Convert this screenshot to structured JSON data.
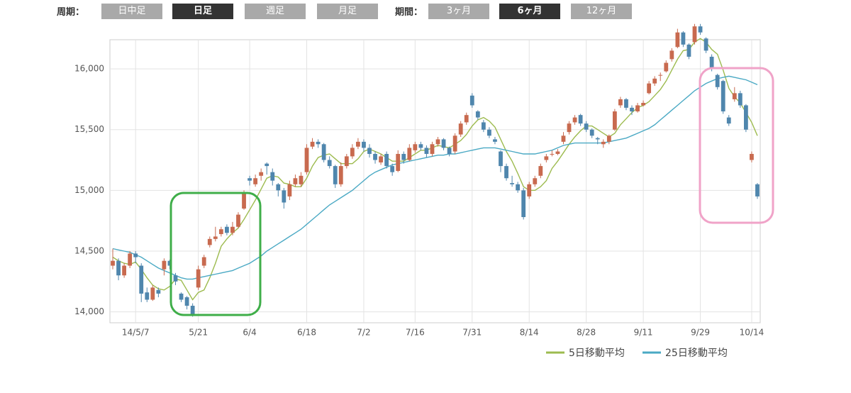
{
  "controls": {
    "period_label": "周期：",
    "period_buttons": [
      "日中足",
      "日足",
      "週足",
      "月足"
    ],
    "range_label": "期間：",
    "range_buttons": [
      "3ヶ月",
      "6ヶ月",
      "12ヶ月"
    ]
  },
  "chart_data": {
    "type": "candlestick",
    "categories": [
      null,
      null,
      null,
      null,
      "14/5/7",
      null,
      null,
      null,
      null,
      null,
      null,
      null,
      null,
      null,
      null,
      "5/21",
      null,
      null,
      null,
      null,
      null,
      null,
      null,
      null,
      "6/4",
      null,
      null,
      null,
      null,
      null,
      null,
      null,
      null,
      null,
      "6/18",
      null,
      null,
      null,
      null,
      null,
      null,
      null,
      null,
      null,
      "7/2",
      null,
      null,
      null,
      null,
      null,
      null,
      null,
      null,
      "7/16",
      null,
      null,
      null,
      null,
      null,
      null,
      null,
      null,
      null,
      "7/31",
      null,
      null,
      null,
      null,
      null,
      null,
      null,
      null,
      null,
      "8/14",
      null,
      null,
      null,
      null,
      null,
      null,
      null,
      null,
      null,
      "8/28",
      null,
      null,
      null,
      null,
      null,
      null,
      null,
      null,
      null,
      "9/11",
      null,
      null,
      null,
      null,
      null,
      null,
      null,
      null,
      null,
      "9/29",
      null,
      null,
      null,
      null,
      null,
      null,
      null,
      null,
      "10/14",
      null
    ],
    "ohlc": [
      [
        14380,
        14520,
        14350,
        14420
      ],
      [
        14420,
        14440,
        14260,
        14300
      ],
      [
        14300,
        14400,
        14280,
        14380
      ],
      [
        14380,
        14500,
        14360,
        14480
      ],
      [
        14480,
        14500,
        14400,
        14450
      ],
      [
        14380,
        14400,
        14080,
        14150
      ],
      [
        14160,
        14200,
        14080,
        14100
      ],
      [
        14100,
        14220,
        14090,
        14200
      ],
      [
        14180,
        14200,
        14120,
        14150
      ],
      [
        14350,
        14440,
        14300,
        14420
      ],
      [
        14420,
        14430,
        14350,
        14380
      ],
      [
        14300,
        14320,
        14220,
        14250
      ],
      [
        14150,
        14160,
        14080,
        14100
      ],
      [
        14120,
        14130,
        14020,
        14050
      ],
      [
        14050,
        14070,
        13960,
        13980
      ],
      [
        14200,
        14380,
        14180,
        14350
      ],
      [
        14380,
        14470,
        14360,
        14450
      ],
      [
        14550,
        14620,
        14530,
        14600
      ],
      [
        14600,
        14700,
        14580,
        14620
      ],
      [
        14640,
        14700,
        14620,
        14680
      ],
      [
        14700,
        14720,
        14630,
        14650
      ],
      [
        14650,
        14740,
        14630,
        14700
      ],
      [
        14700,
        14820,
        14690,
        14800
      ],
      [
        14850,
        15000,
        14840,
        14970
      ],
      [
        15100,
        15120,
        15040,
        15080
      ],
      [
        15050,
        15130,
        15030,
        15100
      ],
      [
        15120,
        15180,
        15080,
        15150
      ],
      [
        15220,
        15230,
        15130,
        15200
      ],
      [
        15150,
        15180,
        15040,
        15080
      ],
      [
        15050,
        15060,
        14950,
        15000
      ],
      [
        15000,
        15020,
        14850,
        14900
      ],
      [
        14950,
        15080,
        14920,
        15050
      ],
      [
        15050,
        15130,
        15030,
        15100
      ],
      [
        15050,
        15150,
        15030,
        15120
      ],
      [
        15150,
        15380,
        15130,
        15350
      ],
      [
        15360,
        15430,
        15340,
        15400
      ],
      [
        15400,
        15420,
        15350,
        15380
      ],
      [
        15380,
        15390,
        15230,
        15250
      ],
      [
        15250,
        15280,
        15180,
        15200
      ],
      [
        15200,
        15210,
        15020,
        15050
      ],
      [
        15050,
        15230,
        15030,
        15200
      ],
      [
        15200,
        15300,
        15180,
        15280
      ],
      [
        15280,
        15380,
        15260,
        15350
      ],
      [
        15360,
        15430,
        15340,
        15400
      ],
      [
        15400,
        15420,
        15320,
        15350
      ],
      [
        15350,
        15380,
        15270,
        15300
      ],
      [
        15300,
        15320,
        15220,
        15250
      ],
      [
        15230,
        15300,
        15210,
        15280
      ],
      [
        15300,
        15320,
        15180,
        15200
      ],
      [
        15200,
        15220,
        15120,
        15150
      ],
      [
        15160,
        15330,
        15150,
        15300
      ],
      [
        15300,
        15320,
        15220,
        15250
      ],
      [
        15250,
        15380,
        15240,
        15350
      ],
      [
        15330,
        15400,
        15310,
        15380
      ],
      [
        15380,
        15400,
        15330,
        15350
      ],
      [
        15350,
        15370,
        15270,
        15300
      ],
      [
        15300,
        15400,
        15280,
        15380
      ],
      [
        15380,
        15440,
        15360,
        15420
      ],
      [
        15420,
        15430,
        15330,
        15350
      ],
      [
        15350,
        15360,
        15280,
        15300
      ],
      [
        15320,
        15470,
        15300,
        15450
      ],
      [
        15460,
        15570,
        15440,
        15550
      ],
      [
        15560,
        15640,
        15540,
        15620
      ],
      [
        15780,
        15800,
        15680,
        15700
      ],
      [
        15650,
        15660,
        15580,
        15600
      ],
      [
        15560,
        15580,
        15480,
        15500
      ],
      [
        15500,
        15520,
        15430,
        15450
      ],
      [
        15420,
        15440,
        15380,
        15400
      ],
      [
        15320,
        15330,
        15150,
        15200
      ],
      [
        15200,
        15220,
        15080,
        15100
      ],
      [
        15060,
        15120,
        15030,
        15050
      ],
      [
        15050,
        15070,
        14980,
        15000
      ],
      [
        15000,
        15020,
        14760,
        14780
      ],
      [
        14950,
        15070,
        14930,
        15050
      ],
      [
        15050,
        15120,
        15030,
        15100
      ],
      [
        15120,
        15220,
        15100,
        15200
      ],
      [
        15250,
        15300,
        15230,
        15280
      ],
      [
        15300,
        15330,
        15280,
        15300
      ],
      [
        15300,
        15340,
        15290,
        15320
      ],
      [
        15400,
        15480,
        15380,
        15450
      ],
      [
        15480,
        15570,
        15460,
        15550
      ],
      [
        15560,
        15620,
        15540,
        15600
      ],
      [
        15620,
        15630,
        15530,
        15550
      ],
      [
        15550,
        15570,
        15480,
        15500
      ],
      [
        15500,
        15510,
        15430,
        15450
      ],
      [
        15430,
        15440,
        15380,
        15420
      ],
      [
        15380,
        15420,
        15350,
        15400
      ],
      [
        15400,
        15460,
        15380,
        15450
      ],
      [
        15500,
        15670,
        15490,
        15650
      ],
      [
        15700,
        15770,
        15680,
        15750
      ],
      [
        15750,
        15760,
        15660,
        15680
      ],
      [
        15680,
        15700,
        15620,
        15650
      ],
      [
        15650,
        15720,
        15640,
        15700
      ],
      [
        15700,
        15740,
        15690,
        15720
      ],
      [
        15800,
        15900,
        15790,
        15880
      ],
      [
        15880,
        15940,
        15860,
        15920
      ],
      [
        15950,
        15970,
        15900,
        15950
      ],
      [
        15980,
        16070,
        15970,
        16050
      ],
      [
        16080,
        16170,
        16060,
        16150
      ],
      [
        16180,
        16330,
        16170,
        16300
      ],
      [
        16300,
        16310,
        16180,
        16200
      ],
      [
        16200,
        16210,
        16080,
        16100
      ],
      [
        16220,
        16370,
        16200,
        16350
      ],
      [
        16350,
        16370,
        16280,
        16300
      ],
      [
        16250,
        16260,
        16130,
        16150
      ],
      [
        16100,
        16120,
        15980,
        16000
      ],
      [
        15950,
        15960,
        15830,
        15850
      ],
      [
        15900,
        15910,
        15630,
        15650
      ],
      [
        15600,
        15620,
        15530,
        15550
      ],
      [
        15750,
        15850,
        15730,
        15800
      ],
      [
        15800,
        15820,
        15680,
        15700
      ],
      [
        15700,
        15710,
        15480,
        15500
      ],
      [
        15250,
        15320,
        15230,
        15300
      ],
      [
        15050,
        15060,
        14930,
        14950
      ]
    ],
    "up_color": "#c86a4f",
    "down_color": "#4f86ad",
    "series": [
      {
        "name": "5日移動平均",
        "color": "#9dbb4f",
        "values": [
          14450,
          14420,
          14400,
          14390,
          14410,
          14350,
          14280,
          14220,
          14190,
          14180,
          14210,
          14270,
          14260,
          14180,
          14100,
          14160,
          14180,
          14280,
          14400,
          14540,
          14600,
          14650,
          14690,
          14760,
          14840,
          14920,
          15010,
          15100,
          15120,
          15110,
          15060,
          15050,
          15030,
          15030,
          15100,
          15200,
          15270,
          15290,
          15300,
          15260,
          15220,
          15220,
          15220,
          15260,
          15320,
          15340,
          15320,
          15300,
          15270,
          15240,
          15240,
          15240,
          15270,
          15300,
          15330,
          15330,
          15350,
          15370,
          15360,
          15350,
          15380,
          15410,
          15460,
          15530,
          15580,
          15600,
          15570,
          15520,
          15420,
          15320,
          15240,
          15140,
          15030,
          15000,
          15000,
          15030,
          15080,
          15180,
          15240,
          15310,
          15380,
          15440,
          15490,
          15530,
          15530,
          15500,
          15470,
          15440,
          15470,
          15540,
          15590,
          15640,
          15680,
          15700,
          15730,
          15780,
          15830,
          15900,
          15990,
          16080,
          16150,
          16160,
          16220,
          16250,
          16220,
          16160,
          16120,
          15990,
          15840,
          15770,
          15720,
          15640,
          15560,
          15450
        ]
      },
      {
        "name": "25日移動平均",
        "color": "#4aa9c4",
        "values": [
          14520,
          14510,
          14500,
          14490,
          14470,
          14450,
          14420,
          14390,
          14360,
          14340,
          14320,
          14300,
          14280,
          14270,
          14270,
          14280,
          14290,
          14300,
          14310,
          14320,
          14330,
          14340,
          14360,
          14380,
          14400,
          14430,
          14460,
          14500,
          14530,
          14560,
          14590,
          14620,
          14650,
          14680,
          14720,
          14760,
          14800,
          14840,
          14880,
          14910,
          14940,
          14970,
          15000,
          15040,
          15080,
          15120,
          15150,
          15170,
          15190,
          15210,
          15220,
          15230,
          15240,
          15250,
          15260,
          15270,
          15280,
          15290,
          15290,
          15300,
          15300,
          15310,
          15320,
          15330,
          15340,
          15350,
          15350,
          15350,
          15340,
          15330,
          15320,
          15310,
          15300,
          15300,
          15300,
          15310,
          15320,
          15330,
          15350,
          15370,
          15380,
          15390,
          15390,
          15390,
          15390,
          15390,
          15390,
          15400,
          15410,
          15420,
          15430,
          15450,
          15470,
          15490,
          15510,
          15540,
          15580,
          15620,
          15660,
          15700,
          15740,
          15780,
          15820,
          15850,
          15880,
          15900,
          15920,
          15930,
          15940,
          15930,
          15920,
          15910,
          15890,
          15870
        ]
      }
    ],
    "ylim": [
      13910,
      16240
    ],
    "yticks": [
      {
        "value": 14000,
        "label": "14,000"
      },
      {
        "value": 14500,
        "label": "14,500"
      },
      {
        "value": 15000,
        "label": "15,000"
      },
      {
        "value": 15500,
        "label": "15,500"
      },
      {
        "value": 16000,
        "label": "16,000"
      }
    ],
    "grid": true
  }
}
